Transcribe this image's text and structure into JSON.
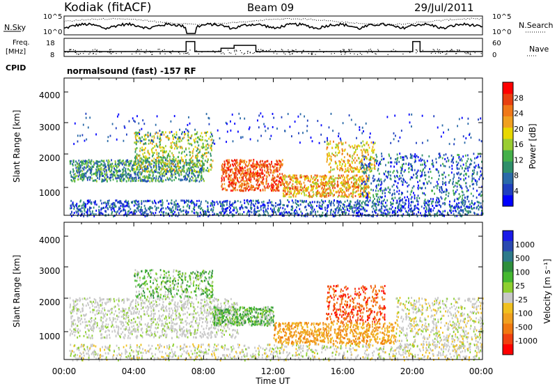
{
  "header": {
    "station": "Kodiak (fitACF)",
    "beam": "Beam 09",
    "date": "29/Jul/2011"
  },
  "status_panel": {
    "nsky_label": "N.Sky",
    "nsearch_label": "N.Search",
    "left_ticks": [
      "10^5",
      "10^0"
    ],
    "right_ticks": [
      "10^5",
      "10^0"
    ],
    "freq_label_1": "Freq.",
    "freq_label_2": "[MHz]",
    "freq_ticks": [
      "18",
      "8"
    ],
    "nave_ticks": [
      "60",
      "0"
    ],
    "nave_label": "Nave",
    "cpid_label": "CPID",
    "cpid_text": "normalsound (fast) -157 RF"
  },
  "colors": {
    "power": [
      "#0000ff",
      "#1f3fbf",
      "#2a6aa8",
      "#2f8f6a",
      "#45b04a",
      "#9acd32",
      "#e8d800",
      "#f0a020",
      "#f07818",
      "#e84010",
      "#ff0000"
    ],
    "velocity": [
      "#1a1ae8",
      "#2a4ab0",
      "#2e7a8a",
      "#2e8f3c",
      "#45b830",
      "#8ecf30",
      "#c8c8c8",
      "#f0c020",
      "#f0a020",
      "#f07810",
      "#f04010",
      "#ff0000"
    ]
  },
  "chart_data": [
    {
      "type": "line",
      "title": "N.Sky / N.Search",
      "x": "time UT 00:00–24:00",
      "yscale": "log",
      "ylim": [
        1,
        100000
      ],
      "series": [
        {
          "name": "N.Sky",
          "style": "solid"
        },
        {
          "name": "N.Search",
          "style": "dotted"
        }
      ]
    },
    {
      "type": "line",
      "title": "Freq. / Nave",
      "ylim_freq_mhz": [
        8,
        18
      ],
      "ylim_nave": [
        0,
        60
      ],
      "series": [
        {
          "name": "Freq.",
          "x": [
            "00:00",
            "07:00",
            "07:00",
            "07:30",
            "07:30",
            "09:00",
            "09:00",
            "09:45",
            "09:45",
            "11:00",
            "11:00",
            "20:00",
            "20:00",
            "20:25",
            "20:25",
            "24:00"
          ],
          "y": [
            10.5,
            10.5,
            16.5,
            16.5,
            10.5,
            10.5,
            12.5,
            12.5,
            14.2,
            14.2,
            10.5,
            10.5,
            16.5,
            16.5,
            10.5,
            10.5
          ]
        },
        {
          "name": "Nave",
          "style": "dots"
        }
      ]
    },
    {
      "type": "heatmap",
      "title": "Power",
      "xlabel": "",
      "ylabel": "Slant Range [km]",
      "xticks": [
        "00:00",
        "04:00",
        "08:00",
        "12:00",
        "16:00",
        "20:00",
        "00:00"
      ],
      "yticks": [
        "1000",
        "2000",
        "3000",
        "4000"
      ],
      "ylim": [
        180,
        4600
      ],
      "colorbar_label": "Power [dB]",
      "colorbar_ticks": [
        "4",
        "8",
        "12",
        "16",
        "20",
        "24",
        "28"
      ]
    },
    {
      "type": "heatmap",
      "title": "Velocity",
      "xlabel": "Time UT",
      "ylabel": "Slant Range [km]",
      "xticks": [
        "00:00",
        "04:00",
        "08:00",
        "12:00",
        "16:00",
        "20:00",
        "00:00"
      ],
      "yticks": [
        "1000",
        "2000",
        "3000",
        "4000"
      ],
      "ylim": [
        180,
        4600
      ],
      "colorbar_label": "Velocity [m s⁻¹]",
      "colorbar_ticks": [
        "1000",
        "500",
        "100",
        "25",
        "-25",
        "-100",
        "-500",
        "-1000"
      ]
    }
  ]
}
